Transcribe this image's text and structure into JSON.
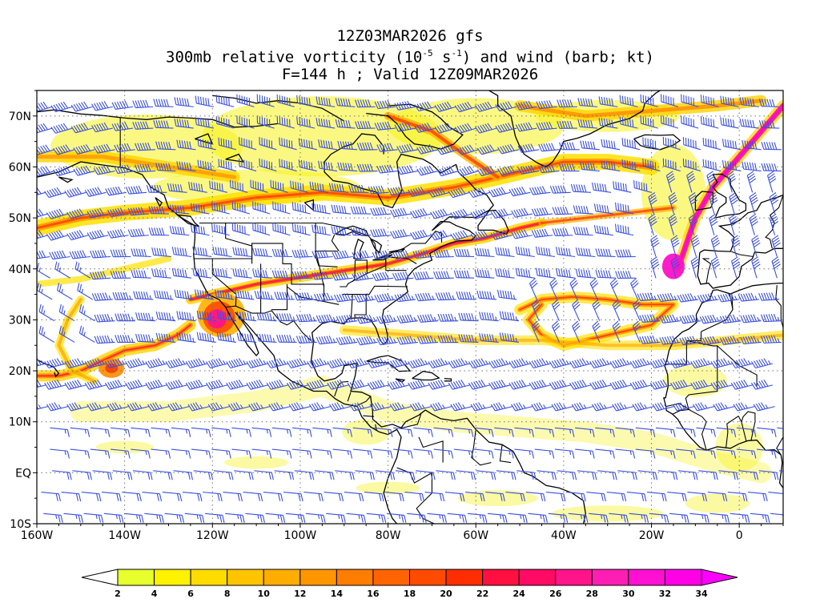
{
  "title": {
    "line1": "12Z03MAR2026 gfs",
    "line2_prefix": "300mb relative vorticity (10",
    "line2_exp1": "-5",
    "line2_mid": " s",
    "line2_exp2": "-1",
    "line2_suffix": ") and wind (barb; kt)",
    "line3": "F=144 h ; Valid 12Z09MAR2026"
  },
  "map": {
    "projection": "latlon",
    "lon_range": [
      -160,
      10
    ],
    "lat_range": [
      -10,
      75
    ],
    "x_ticks": [
      {
        "lon": -160,
        "label": "160W"
      },
      {
        "lon": -140,
        "label": "140W"
      },
      {
        "lon": -120,
        "label": "120W"
      },
      {
        "lon": -100,
        "label": "100W"
      },
      {
        "lon": -80,
        "label": "80W"
      },
      {
        "lon": -60,
        "label": "60W"
      },
      {
        "lon": -40,
        "label": "40W"
      },
      {
        "lon": -20,
        "label": "20W"
      },
      {
        "lon": 0,
        "label": "0"
      }
    ],
    "y_ticks": [
      {
        "lat": -10,
        "label": "10S"
      },
      {
        "lat": 0,
        "label": "EQ"
      },
      {
        "lat": 10,
        "label": "10N"
      },
      {
        "lat": 20,
        "label": "20N"
      },
      {
        "lat": 30,
        "label": "30N"
      },
      {
        "lat": 40,
        "label": "40N"
      },
      {
        "lat": 50,
        "label": "50N"
      },
      {
        "lat": 60,
        "label": "60N"
      },
      {
        "lat": 70,
        "label": "70N"
      }
    ],
    "gridlines": true,
    "barb_color": "#3a4fe0",
    "coast_color": "#000000"
  },
  "colorbar": {
    "levels": [
      2,
      4,
      6,
      8,
      10,
      12,
      14,
      16,
      18,
      20,
      22,
      24,
      26,
      28,
      30,
      32,
      34
    ],
    "colors": [
      "#e6ff2d",
      "#fff200",
      "#ffdc00",
      "#ffc400",
      "#ffad00",
      "#ff9600",
      "#ff7d00",
      "#ff6400",
      "#ff4b00",
      "#ff2d00",
      "#ff1040",
      "#ff0a64",
      "#ff148c",
      "#ff1eb4",
      "#ff10d2",
      "#ff00e6"
    ],
    "under_color": "#ffffff",
    "over_color": "#ff00ff"
  }
}
